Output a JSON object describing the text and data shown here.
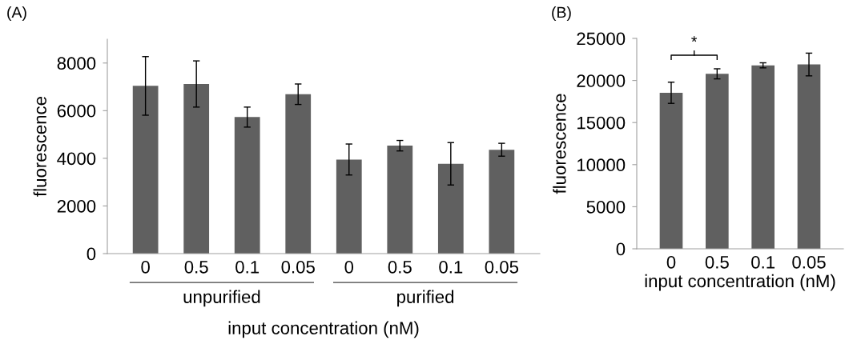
{
  "chart_data": [
    {
      "type": "bar",
      "title": "(A)",
      "ylabel": "fluorescence",
      "xlabel": "input concentration (nM)",
      "categories": [
        "0",
        "0.5",
        "0.1",
        "0.05",
        "0",
        "0.5",
        "0.1",
        "0.05"
      ],
      "values": [
        7040,
        7120,
        5730,
        6690,
        3950,
        4530,
        3770,
        4360
      ],
      "errors": [
        1230,
        970,
        420,
        430,
        650,
        220,
        890,
        270
      ],
      "color": "#606060",
      "ylim": [
        0,
        9000
      ],
      "yticks": [
        0,
        2000,
        4000,
        6000,
        8000
      ],
      "grid": false,
      "legend": false,
      "annotations": [
        "unpurified",
        "purified"
      ]
    },
    {
      "type": "bar",
      "title": "(B)",
      "ylabel": "fluorescence",
      "xlabel": "input concentration (nM)",
      "categories": [
        "0",
        "0.5",
        "0.1",
        "0.05"
      ],
      "values": [
        18540,
        20790,
        21800,
        21900
      ],
      "errors": [
        1260,
        600,
        300,
        1350
      ],
      "color": "#606060",
      "ylim": [
        0,
        25000
      ],
      "yticks": [
        0,
        5000,
        10000,
        15000,
        20000,
        25000
      ],
      "grid": false,
      "legend": false,
      "annotations": [
        "*"
      ]
    }
  ]
}
